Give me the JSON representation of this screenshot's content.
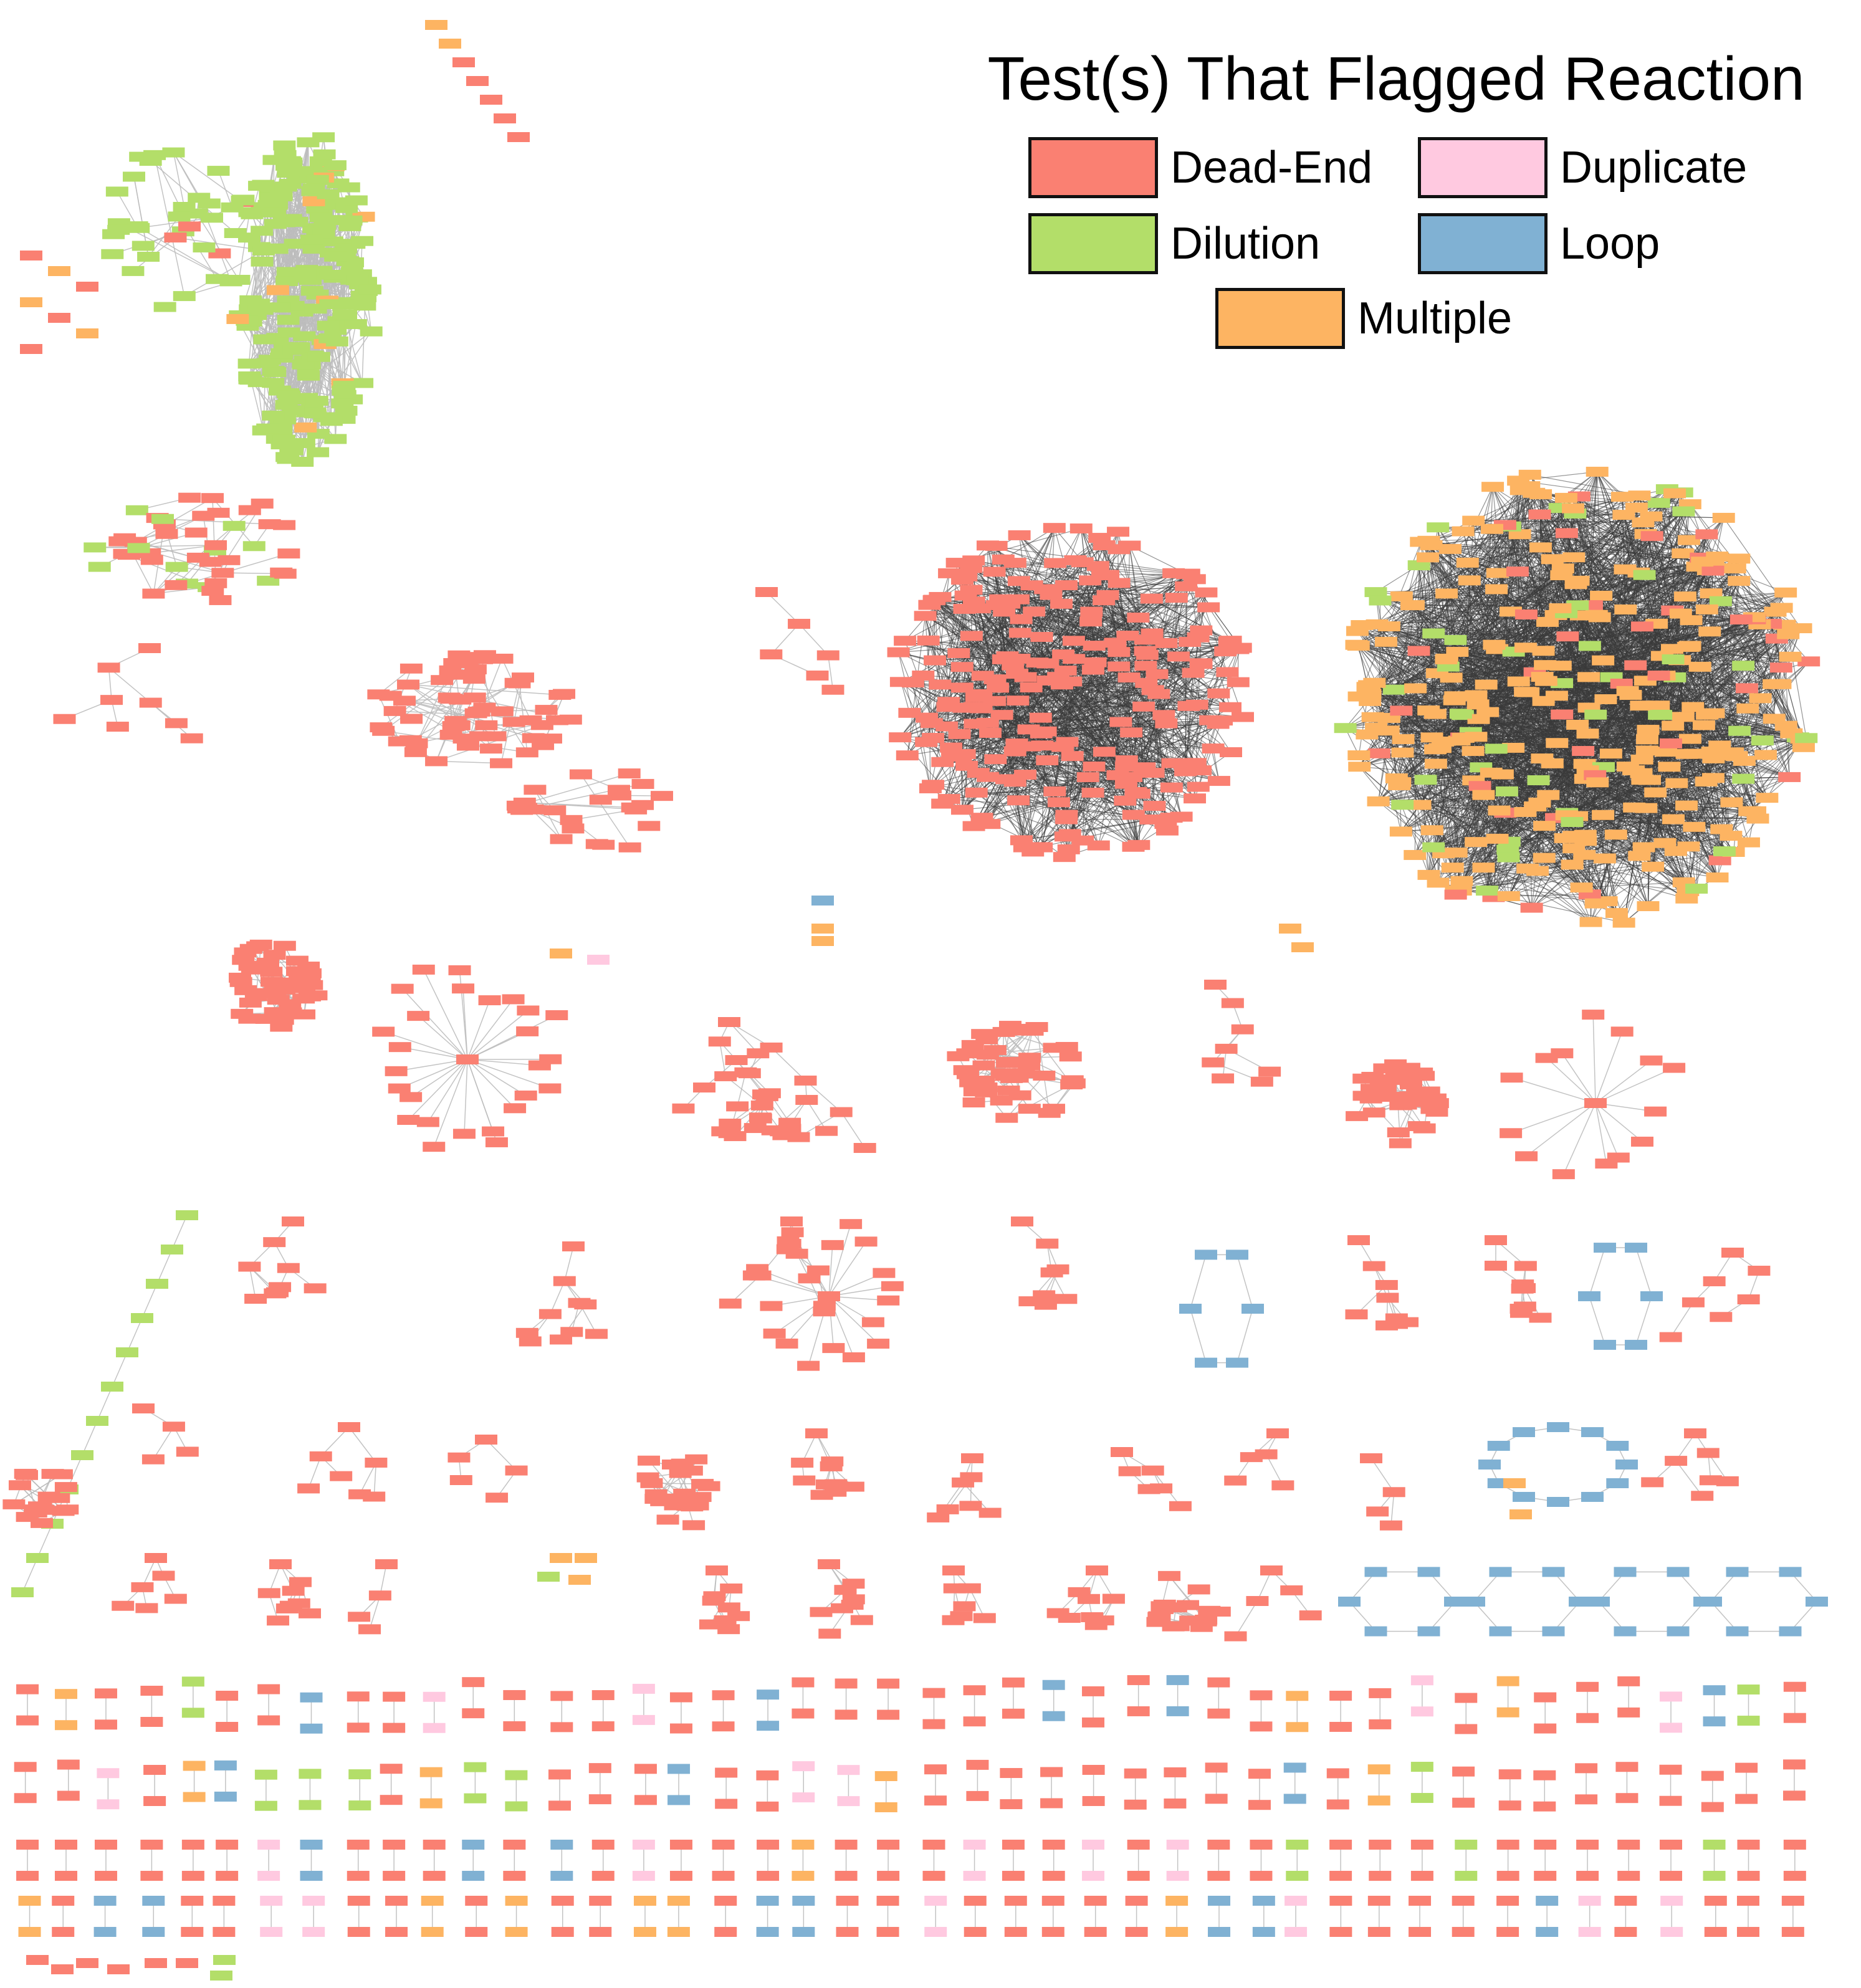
{
  "legend": {
    "title": "Test(s) That Flagged Reaction",
    "items": [
      {
        "label": "Dead-End",
        "color": "#fa8072"
      },
      {
        "label": "Duplicate",
        "color": "#ffc9e0"
      },
      {
        "label": "Dilution",
        "color": "#b3de69"
      },
      {
        "label": "Loop",
        "color": "#80b1d3"
      },
      {
        "label": "Multiple",
        "color": "#fdb462"
      }
    ]
  },
  "node_colors": {
    "dead_end": "#fa8072",
    "duplicate": "#ffc9e0",
    "dilution": "#b3de69",
    "loop": "#80b1d3",
    "multiple": "#fdb462"
  },
  "edge_colors": {
    "light": "#bdbdbd",
    "dense": "#3a3a3a"
  }
}
